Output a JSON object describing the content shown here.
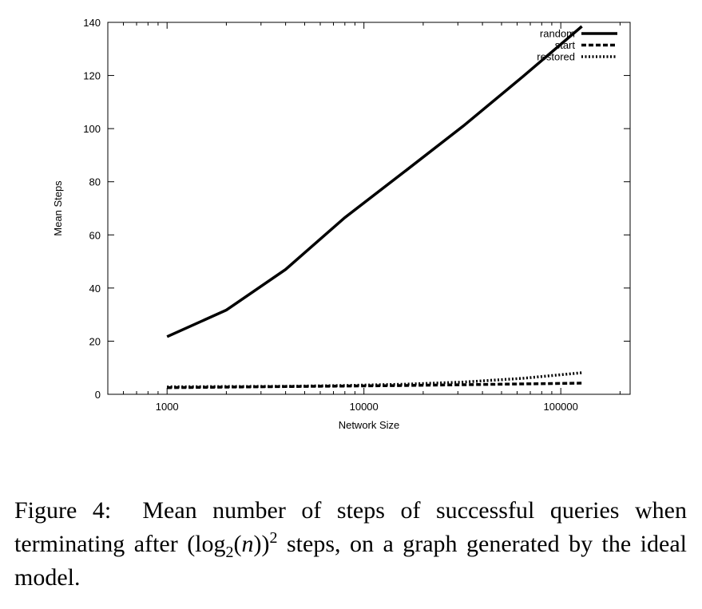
{
  "chart_data": {
    "type": "line",
    "xlabel": "Network Size",
    "ylabel": "Mean Steps",
    "xscale": "log",
    "xlim": [
      500,
      225000
    ],
    "ylim": [
      0,
      140
    ],
    "xticks": [
      1000,
      10000,
      100000
    ],
    "xtick_labels": [
      "1000",
      "10000",
      "100000"
    ],
    "yticks": [
      0,
      20,
      40,
      60,
      80,
      100,
      120,
      140
    ],
    "ytick_labels": [
      "0",
      "20",
      "40",
      "60",
      "80",
      "100",
      "120",
      "140"
    ],
    "legend_position": "top-right",
    "grid": false,
    "x": [
      1000,
      2000,
      4000,
      8000,
      16000,
      32000,
      64000,
      128000
    ],
    "series": [
      {
        "name": "random",
        "style": "solid",
        "values": [
          21.7,
          31.7,
          47,
          66.5,
          83.7,
          101,
          119.5,
          138.5
        ]
      },
      {
        "name": "start",
        "style": "dashed",
        "values": [
          2.5,
          2.7,
          2.9,
          3.1,
          3.3,
          3.6,
          3.9,
          4.2
        ]
      },
      {
        "name": "restored",
        "style": "dotted",
        "values": [
          2.8,
          2.9,
          3.0,
          3.3,
          3.8,
          4.6,
          6.0,
          8.1
        ]
      }
    ]
  },
  "caption": {
    "figure_label": "Figure 4:",
    "text_before": "Mean number of steps of successful queries when terminating after (log",
    "subscript": "2",
    "text_middle": "(",
    "math_var": "n",
    "text_close": "))",
    "superscript": "2",
    "text_after": " steps, on a graph generated by the ideal model."
  }
}
